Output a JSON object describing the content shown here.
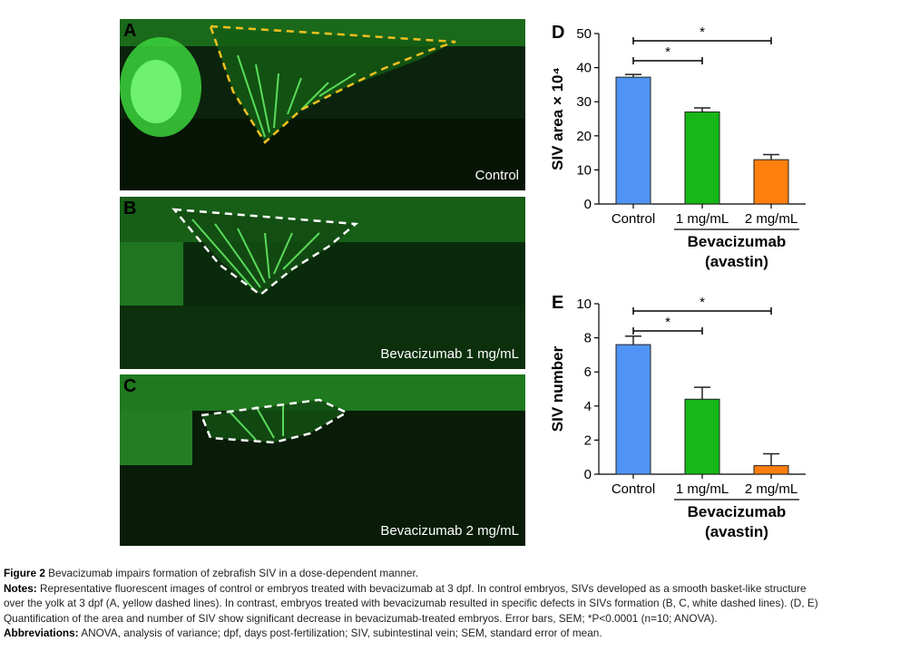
{
  "panels": [
    {
      "letter": "A",
      "label": "Control",
      "outline_color": "#f0c020"
    },
    {
      "letter": "B",
      "label": "Bevacizumab 1 mg/mL",
      "outline_color": "#ffffff"
    },
    {
      "letter": "C",
      "label": "Bevacizumab 2 mg/mL",
      "outline_color": "#ffffff"
    }
  ],
  "chart_data": [
    {
      "panel_letter": "D",
      "type": "bar",
      "categories": [
        "Control",
        "1 mg/mL",
        "2 mg/mL"
      ],
      "values": [
        37.2,
        27,
        13
      ],
      "errors": [
        0.8,
        1.2,
        1.5
      ],
      "colors": [
        "#4f94f5",
        "#16b716",
        "#ff7f0e"
      ],
      "ylabel": "SIV area × 10⁴",
      "ylim": [
        0,
        50
      ],
      "yticks": [
        0,
        10,
        20,
        30,
        40,
        50
      ],
      "group_label": [
        "Bevacizumab",
        "(avastin)"
      ],
      "significance": [
        {
          "from": 0,
          "to": 1,
          "label": "*"
        },
        {
          "from": 0,
          "to": 2,
          "label": "*"
        }
      ]
    },
    {
      "panel_letter": "E",
      "type": "bar",
      "categories": [
        "Control",
        "1 mg/mL",
        "2 mg/mL"
      ],
      "values": [
        7.6,
        4.4,
        0.5
      ],
      "errors": [
        0.5,
        0.7,
        0.7
      ],
      "colors": [
        "#4f94f5",
        "#16b716",
        "#ff7f0e"
      ],
      "ylabel": "SIV number",
      "ylim": [
        0,
        10
      ],
      "yticks": [
        0,
        2,
        4,
        6,
        8,
        10
      ],
      "group_label": [
        "Bevacizumab",
        "(avastin)"
      ],
      "significance": [
        {
          "from": 0,
          "to": 1,
          "label": "*"
        },
        {
          "from": 0,
          "to": 2,
          "label": "*"
        }
      ]
    }
  ],
  "caption": {
    "figure_label": "Figure 2",
    "title": " Bevacizumab impairs formation of zebrafish SIV in a dose-dependent manner.",
    "notes_label": "Notes:",
    "notes_lines": [
      " Representative fluorescent images of control or embryos treated with bevacizumab at 3 dpf. In control embryos, SIVs developed as a smooth basket-like structure",
      "over the yolk at 3 dpf (A, yellow dashed lines). In contrast, embryos treated with bevacizumab resulted in specific defects in SIVs formation (B, C, white dashed lines). (D, E)",
      "Quantification of the area and number of SIV show significant decrease in bevacizumab-treated embryos. Error bars, SEM; *P<0.0001 (n=10; ANOVA)."
    ],
    "abbreviations_label": "Abbreviations:",
    "abbreviations": " ANOVA, analysis of variance; dpf, days post-fertilization; SIV, subintestinal vein; SEM, standard error of mean."
  }
}
